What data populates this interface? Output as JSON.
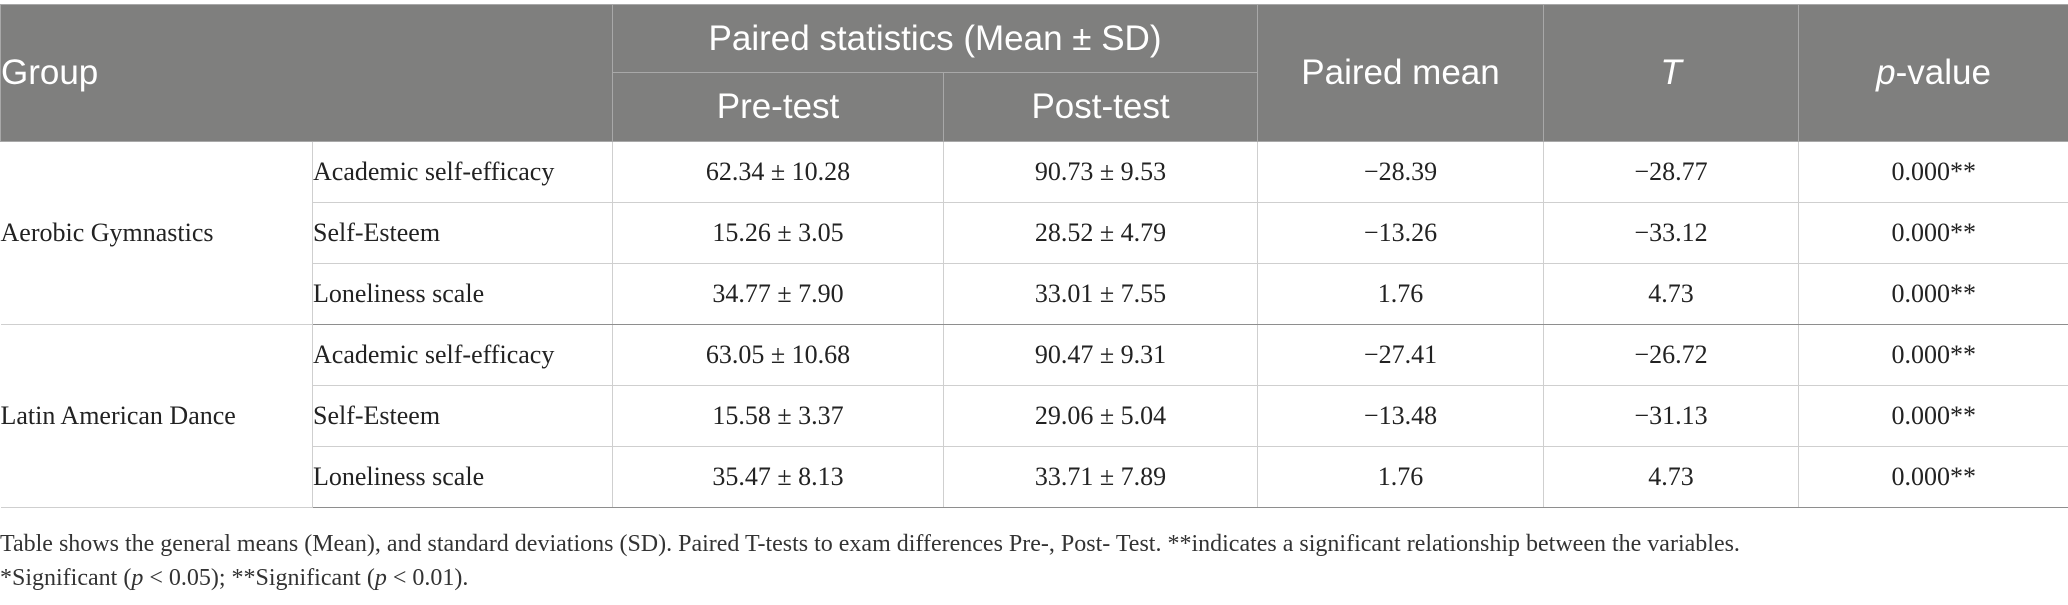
{
  "header": {
    "group": "Group",
    "paired_statistics": "Paired statistics (Mean ± SD)",
    "pre_test": "Pre-test",
    "post_test": "Post-test",
    "paired_mean": "Paired mean",
    "t": "T",
    "p_italic": "p",
    "p_rest": "-value"
  },
  "groups": [
    {
      "name": "Aerobic Gymnastics",
      "rows": [
        {
          "measure": "Academic self-efficacy",
          "pre": "62.34 ± 10.28",
          "post": "90.73 ± 9.53",
          "paired_mean": "−28.39",
          "t": "−28.77",
          "p": "0.000**"
        },
        {
          "measure": "Self-Esteem",
          "pre": "15.26 ± 3.05",
          "post": "28.52 ± 4.79",
          "paired_mean": "−13.26",
          "t": "−33.12",
          "p": "0.000**"
        },
        {
          "measure": "Loneliness scale",
          "pre": "34.77 ± 7.90",
          "post": "33.01 ± 7.55",
          "paired_mean": "1.76",
          "t": "4.73",
          "p": "0.000**"
        }
      ]
    },
    {
      "name": "Latin American Dance",
      "rows": [
        {
          "measure": "Academic self-efficacy",
          "pre": "63.05 ± 10.68",
          "post": "90.47 ± 9.31",
          "paired_mean": "−27.41",
          "t": "−26.72",
          "p": "0.000**"
        },
        {
          "measure": "Self-Esteem",
          "pre": "15.58 ± 3.37",
          "post": "29.06 ± 5.04",
          "paired_mean": "−13.48",
          "t": "−31.13",
          "p": "0.000**"
        },
        {
          "measure": "Loneliness scale",
          "pre": "35.47 ± 8.13",
          "post": "33.71 ± 7.89",
          "paired_mean": "1.76",
          "t": "4.73",
          "p": "0.000**"
        }
      ]
    }
  ],
  "footnote": {
    "line1": "Table shows the general means (Mean), and standard deviations (SD). Paired T-tests to exam differences Pre-, Post- Test. **indicates a significant relationship between the variables.",
    "line2_a": "*Significant (",
    "line2_b": "p",
    "line2_c": " < 0.05); **Significant (",
    "line2_d": "p",
    "line2_e": " < 0.01)."
  }
}
